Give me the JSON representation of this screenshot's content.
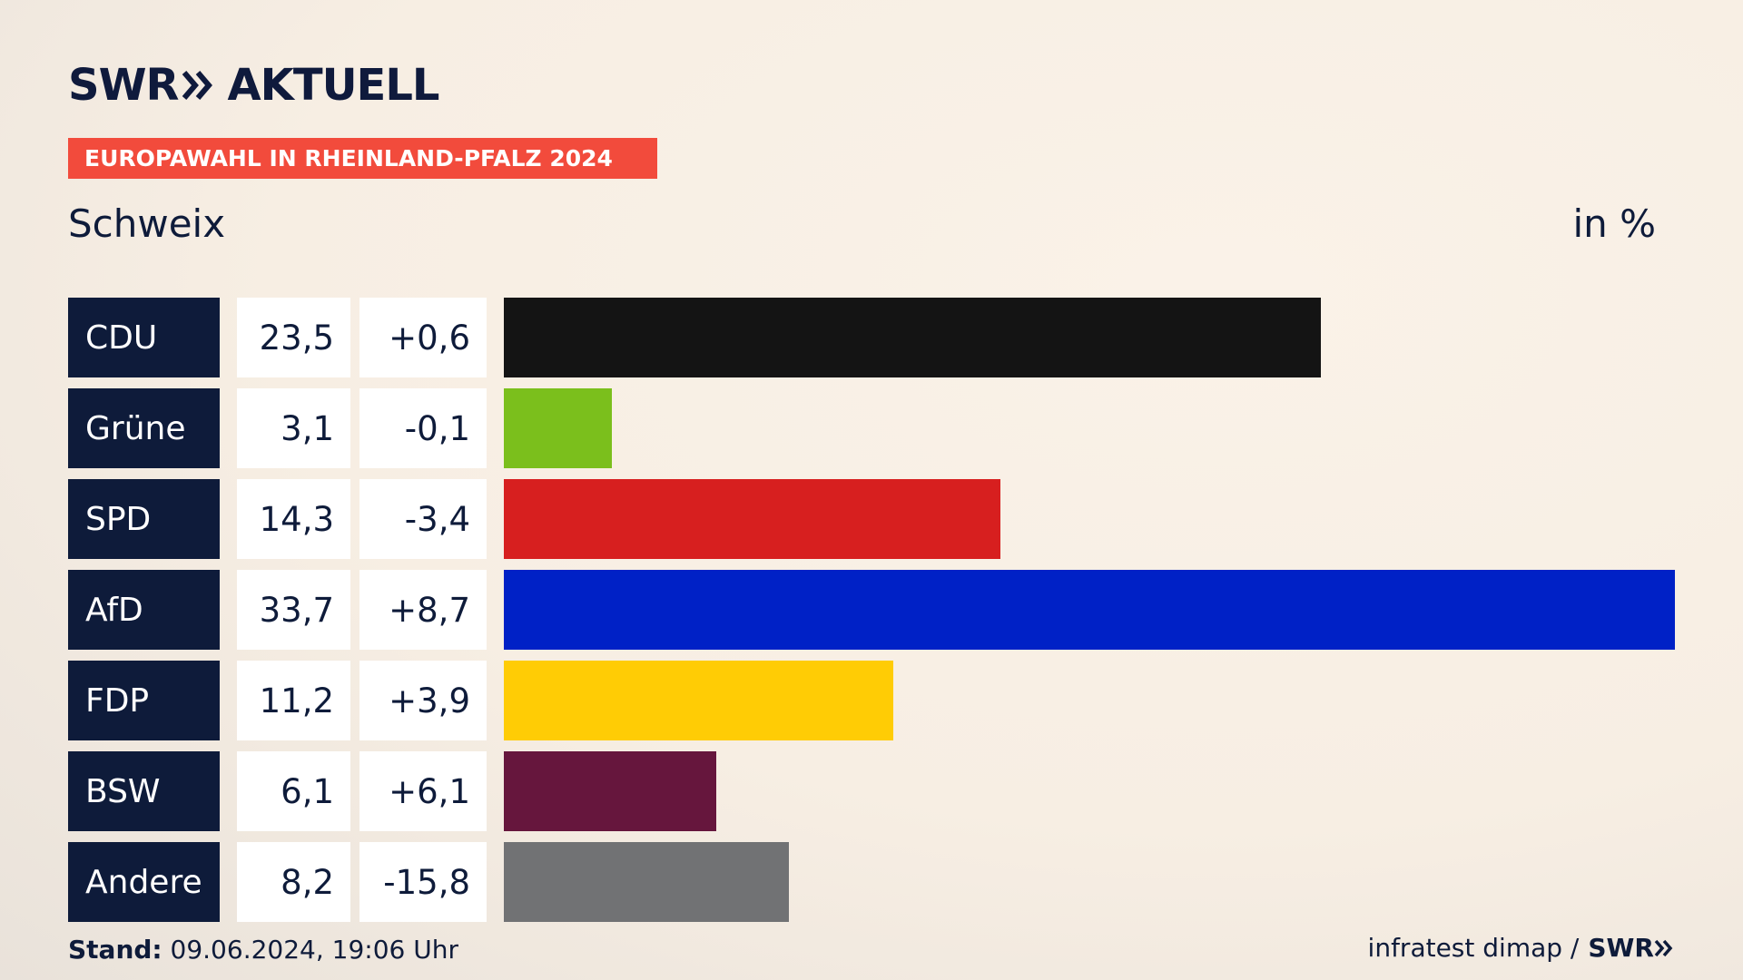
{
  "header": {
    "logo_text_left": "SWR",
    "logo_text_right": "AKTUELL",
    "banner": "EUROPAWAHL IN RHEINLAND-PFALZ 2024",
    "location": "Schweix",
    "unit": "in %"
  },
  "footer": {
    "stand_label": "Stand:",
    "stand_value": "09.06.2024, 19:06 Uhr",
    "source_text": "infratest dimap /",
    "source_logo": "SWR"
  },
  "colors": {
    "navy": "#0e1b3a",
    "banner": "#f24b3c"
  },
  "chart_data": {
    "type": "bar",
    "orientation": "horizontal",
    "unit": "in %",
    "categories": [
      "CDU",
      "Grüne",
      "SPD",
      "AfD",
      "FDP",
      "BSW",
      "Andere"
    ],
    "values": [
      23.5,
      3.1,
      14.3,
      33.7,
      11.2,
      6.1,
      8.2
    ],
    "values_label": [
      "23,5",
      "3,1",
      "14,3",
      "33,7",
      "11,2",
      "6,1",
      "8,2"
    ],
    "diffs_label": [
      "+0,6",
      "-0,1",
      "-3,4",
      "+8,7",
      "+3,9",
      "+6,1",
      "-15,8"
    ],
    "colors": [
      "#141414",
      "#7bbf1c",
      "#d71f1f",
      "#0021c6",
      "#ffcc05",
      "#66163d",
      "#717274"
    ],
    "xlim": [
      0,
      33.7
    ]
  }
}
